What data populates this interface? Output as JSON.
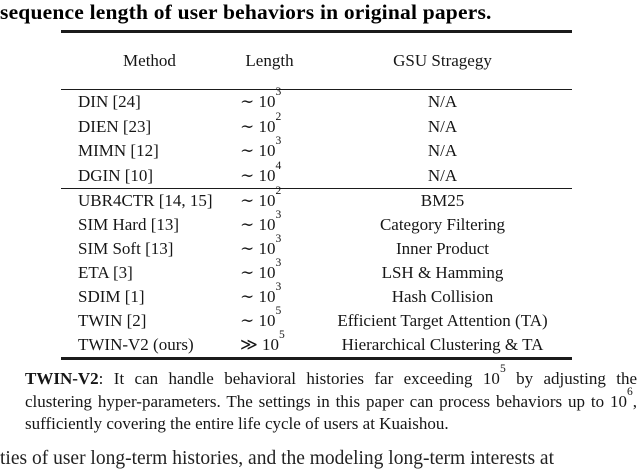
{
  "page": {
    "title_fragment": "sequence length of user behaviors in original papers.",
    "bottom_partial_text": "ties of user long-term histories, and the modeling long-term interests at"
  },
  "table": {
    "headers": {
      "method": "Method",
      "length": "Length",
      "gsu": "GSU Stragegy"
    },
    "groups": [
      {
        "rows": [
          {
            "method": "DIN [24]",
            "length_op": "∼",
            "length_base": "10",
            "length_exp": "3",
            "gsu": "N/A"
          },
          {
            "method": "DIEN [23]",
            "length_op": "∼",
            "length_base": "10",
            "length_exp": "2",
            "gsu": "N/A"
          },
          {
            "method": "MIMN [12]",
            "length_op": "∼",
            "length_base": "10",
            "length_exp": "3",
            "gsu": "N/A"
          },
          {
            "method": "DGIN [10]",
            "length_op": "∼",
            "length_base": "10",
            "length_exp": "4",
            "gsu": "N/A"
          }
        ]
      },
      {
        "rows": [
          {
            "method": "UBR4CTR [14, 15]",
            "length_op": "∼",
            "length_base": "10",
            "length_exp": "2",
            "gsu": "BM25"
          },
          {
            "method": "SIM Hard [13]",
            "length_op": "∼",
            "length_base": "10",
            "length_exp": "3",
            "gsu": "Category Filtering"
          },
          {
            "method": "SIM Soft [13]",
            "length_op": "∼",
            "length_base": "10",
            "length_exp": "3",
            "gsu": "Inner Product"
          },
          {
            "method": "ETA [3]",
            "length_op": "∼",
            "length_base": "10",
            "length_exp": "3",
            "gsu": "LSH & Hamming"
          },
          {
            "method": "SDIM [1]",
            "length_op": "∼",
            "length_base": "10",
            "length_exp": "3",
            "gsu": "Hash Collision"
          },
          {
            "method": "TWIN [2]",
            "length_op": "∼",
            "length_base": "10",
            "length_exp": "5",
            "gsu": "Efficient Target Attention (TA)"
          },
          {
            "method": "TWIN-V2 (ours)",
            "length_op": "≫",
            "length_base": "10",
            "length_exp": "5",
            "gsu": "Hierarchical Clustering & TA"
          }
        ]
      }
    ]
  },
  "caption": {
    "label": "TWIN-V2",
    "segments": [
      {
        "text": ": It can handle behavioral histories far exceeding 10"
      },
      {
        "sup": "5"
      },
      {
        "text": " by adjusting the clustering hyper-parameters. The settings in this paper can process behaviors up to 10"
      },
      {
        "sup": "6"
      },
      {
        "text": ", sufficiently covering the entire life cycle of users at Kuaishou."
      }
    ]
  }
}
